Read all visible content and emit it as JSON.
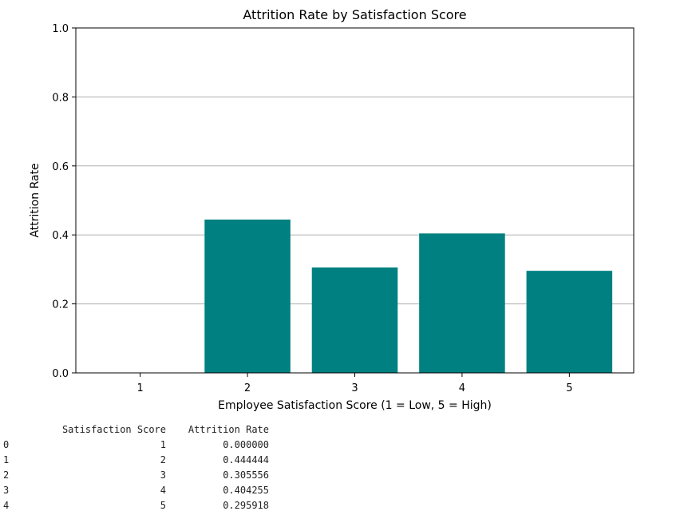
{
  "chart_data": {
    "type": "bar",
    "title": "Attrition Rate by Satisfaction Score",
    "xlabel": "Employee Satisfaction Score (1 = Low, 5 = High)",
    "ylabel": "Attrition Rate",
    "categories": [
      "1",
      "2",
      "3",
      "4",
      "5"
    ],
    "values": [
      0.0,
      0.444444,
      0.305556,
      0.404255,
      0.295918
    ],
    "ylim": [
      0,
      1.0
    ],
    "yticks": [
      "0.0",
      "0.2",
      "0.4",
      "0.6",
      "0.8",
      "1.0"
    ],
    "grid": "y",
    "bar_color": "#008080"
  },
  "table": {
    "columns": [
      "Satisfaction Score",
      "Attrition Rate"
    ],
    "rows": [
      {
        "index": "0",
        "score": "1",
        "rate": "0.000000"
      },
      {
        "index": "1",
        "score": "2",
        "rate": "0.444444"
      },
      {
        "index": "2",
        "score": "3",
        "rate": "0.305556"
      },
      {
        "index": "3",
        "score": "4",
        "rate": "0.404255"
      },
      {
        "index": "4",
        "score": "5",
        "rate": "0.295918"
      }
    ]
  }
}
